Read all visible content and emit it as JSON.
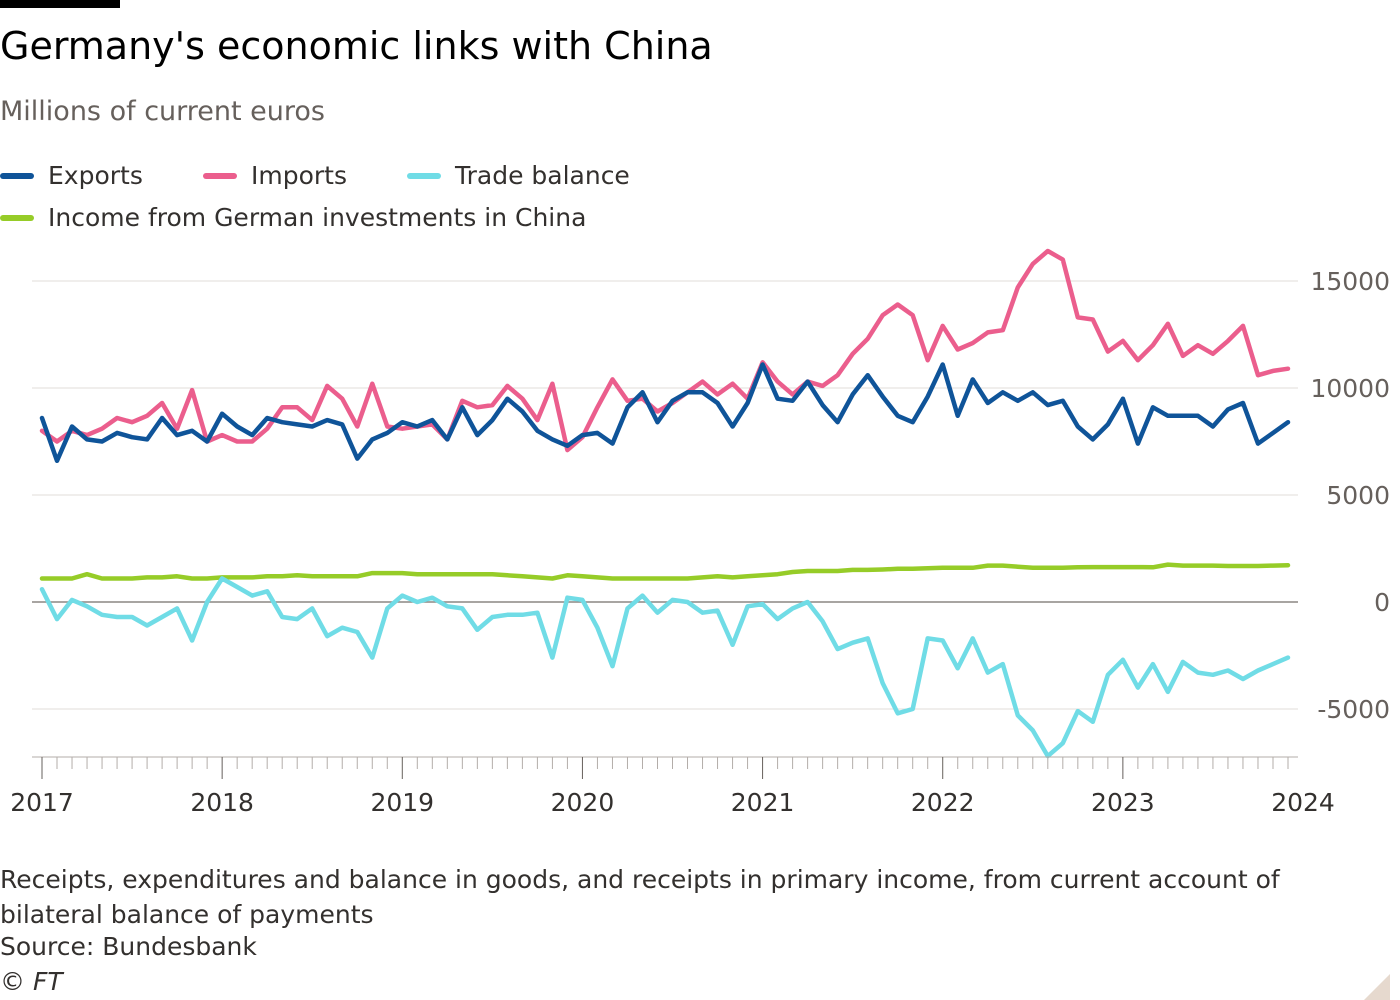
{
  "header": {
    "title": "Germany's economic links with China",
    "subtitle": "Millions of current euros"
  },
  "legend": [
    {
      "label": "Exports",
      "color": "#0f5499"
    },
    {
      "label": "Imports",
      "color": "#eb5e8d"
    },
    {
      "label": "Trade balance",
      "color": "#70dce6"
    },
    {
      "label": "Income from German investments in China",
      "color": "#96cc28"
    }
  ],
  "footer": {
    "note": "Receipts, expenditures and balance in goods, and receipts in primary income, from current account of bilateral balance of payments",
    "source": "Source: Bundesbank",
    "copyright": "© FT"
  },
  "chart_data": {
    "type": "line",
    "frequency": "monthly",
    "x_start": "2017-01",
    "x_end": "2024-03",
    "xticks": [
      "2017",
      "2018",
      "2019",
      "2020",
      "2021",
      "2022",
      "2023",
      "2024"
    ],
    "yticks": [
      15000,
      10000,
      5000,
      0,
      -5000
    ],
    "ylim": [
      -7500,
      17000
    ],
    "grid": true,
    "legend_position": "top-left",
    "series": [
      {
        "name": "Exports",
        "color": "#0f5499",
        "values": [
          8600,
          6600,
          8200,
          7600,
          7500,
          7900,
          7700,
          7600,
          8600,
          7800,
          8000,
          7500,
          8800,
          8200,
          7800,
          8600,
          8400,
          8300,
          8200,
          8500,
          8300,
          6700,
          7600,
          7900,
          8400,
          8200,
          8500,
          7600,
          9100,
          7800,
          8500,
          9500,
          8900,
          8000,
          7600,
          7300,
          7800,
          7900,
          7400,
          9100,
          9800,
          8400,
          9400,
          9800,
          9800,
          9300,
          8200,
          9300,
          11100,
          9500,
          9400,
          10300,
          9200,
          8400,
          9700,
          10600,
          9600,
          8700,
          8400,
          9600,
          11100,
          8700,
          10400,
          9300,
          9800,
          9400,
          9800,
          9200,
          9400,
          8200,
          7600,
          8300,
          9500,
          7400,
          9100,
          8700,
          8700,
          8700,
          8200,
          9000,
          9300,
          7400,
          7900,
          8400
        ]
      },
      {
        "name": "Imports",
        "color": "#eb5e8d",
        "values": [
          8000,
          7500,
          8000,
          7800,
          8100,
          8600,
          8400,
          8700,
          9300,
          8100,
          9900,
          7500,
          7800,
          7500,
          7500,
          8100,
          9100,
          9100,
          8500,
          10100,
          9500,
          8200,
          10200,
          8200,
          8100,
          8200,
          8300,
          7600,
          9400,
          9100,
          9200,
          10100,
          9500,
          8500,
          10200,
          7100,
          7700,
          9100,
          10400,
          9400,
          9500,
          8900,
          9300,
          9800,
          10300,
          9700,
          10200,
          9500,
          11200,
          10300,
          9700,
          10300,
          10100,
          10600,
          11600,
          12300,
          13400,
          13900,
          13400,
          11300,
          12900,
          11800,
          12100,
          12600,
          12700,
          14700,
          15800,
          16400,
          16000,
          13300,
          13200,
          11700,
          12200,
          11300,
          12000,
          13000,
          11500,
          12000,
          11600,
          12200,
          12900,
          10600,
          10800,
          10900
        ]
      },
      {
        "name": "Trade balance",
        "color": "#70dce6",
        "values": [
          600,
          -800,
          100,
          -200,
          -600,
          -700,
          -700,
          -1100,
          -700,
          -300,
          -1800,
          0,
          1100,
          700,
          300,
          500,
          -700,
          -800,
          -300,
          -1600,
          -1200,
          -1400,
          -2600,
          -300,
          300,
          0,
          200,
          -200,
          -300,
          -1300,
          -700,
          -600,
          -600,
          -500,
          -2600,
          200,
          100,
          -1200,
          -3000,
          -300,
          300,
          -500,
          100,
          0,
          -500,
          -400,
          -2000,
          -200,
          -100,
          -800,
          -300,
          0,
          -900,
          -2200,
          -1900,
          -1700,
          -3800,
          -5200,
          -5000,
          -1700,
          -1800,
          -3100,
          -1700,
          -3300,
          -2900,
          -5300,
          -6000,
          -7200,
          -6600,
          -5100,
          -5600,
          -3400,
          -2700,
          -4000,
          -2900,
          -4200,
          -2800,
          -3300,
          -3400,
          -3200,
          -3600,
          -3200,
          -2900,
          -2600
        ]
      },
      {
        "name": "Income from German investments in China",
        "color": "#96cc28",
        "values": [
          1100,
          1100,
          1100,
          1300,
          1100,
          1100,
          1100,
          1150,
          1150,
          1200,
          1100,
          1100,
          1150,
          1150,
          1150,
          1200,
          1200,
          1250,
          1200,
          1200,
          1200,
          1200,
          1350,
          1350,
          1350,
          1300,
          1300,
          1300,
          1300,
          1300,
          1300,
          1250,
          1200,
          1150,
          1100,
          1250,
          1200,
          1150,
          1100,
          1100,
          1100,
          1100,
          1100,
          1100,
          1150,
          1200,
          1150,
          1200,
          1250,
          1300,
          1400,
          1450,
          1450,
          1450,
          1500,
          1500,
          1520,
          1550,
          1550,
          1580,
          1600,
          1600,
          1600,
          1700,
          1700,
          1650,
          1600,
          1600,
          1600,
          1620,
          1630,
          1630,
          1630,
          1630,
          1620,
          1750,
          1700,
          1700,
          1700,
          1680,
          1680,
          1680,
          1700,
          1720
        ]
      }
    ]
  }
}
